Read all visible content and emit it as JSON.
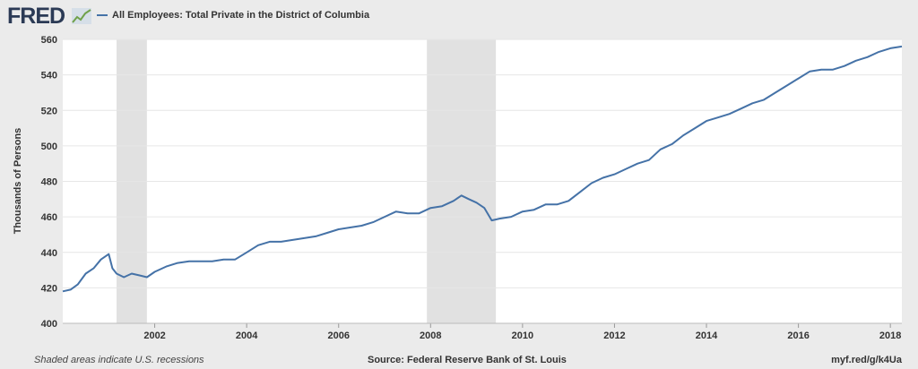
{
  "brand": {
    "logo_text": "FRED",
    "logo_icon": "fred-chart-icon"
  },
  "footer": {
    "note": "Shaded areas indicate U.S. recessions",
    "source": "Source: Federal Reserve Bank of St. Louis",
    "link": "myf.red/g/k4Ua"
  },
  "colors": {
    "series": "#4572a7",
    "recession": "#e1e1e1",
    "background": "#ebebeb",
    "plot": "#ffffff",
    "grid": "#e6e6e6"
  },
  "chart_data": {
    "type": "line",
    "title": "",
    "xlabel": "",
    "ylabel": "Thousands of Persons",
    "ylim": [
      400,
      560
    ],
    "xlim": [
      2000.0,
      2018.25
    ],
    "yticks": [
      400,
      420,
      440,
      460,
      480,
      500,
      520,
      540,
      560
    ],
    "xticks": [
      2002,
      2004,
      2006,
      2008,
      2010,
      2012,
      2014,
      2016,
      2018
    ],
    "grid": true,
    "legend": "top-left",
    "recessions": [
      [
        2001.17,
        2001.83
      ],
      [
        2007.92,
        2009.42
      ]
    ],
    "series": [
      {
        "name": "All Employees: Total Private in the District of Columbia",
        "color": "#4572a7",
        "x": [
          2000.0,
          2000.17,
          2000.33,
          2000.5,
          2000.67,
          2000.83,
          2001.0,
          2001.08,
          2001.17,
          2001.33,
          2001.5,
          2001.67,
          2001.83,
          2002.0,
          2002.25,
          2002.5,
          2002.75,
          2003.0,
          2003.25,
          2003.5,
          2003.75,
          2004.0,
          2004.25,
          2004.5,
          2004.75,
          2005.0,
          2005.25,
          2005.5,
          2005.75,
          2006.0,
          2006.25,
          2006.5,
          2006.75,
          2007.0,
          2007.25,
          2007.5,
          2007.75,
          2008.0,
          2008.25,
          2008.5,
          2008.67,
          2008.83,
          2009.0,
          2009.17,
          2009.33,
          2009.5,
          2009.75,
          2010.0,
          2010.25,
          2010.5,
          2010.75,
          2011.0,
          2011.25,
          2011.5,
          2011.75,
          2012.0,
          2012.25,
          2012.5,
          2012.75,
          2013.0,
          2013.25,
          2013.5,
          2013.75,
          2014.0,
          2014.25,
          2014.5,
          2014.75,
          2015.0,
          2015.25,
          2015.5,
          2015.75,
          2016.0,
          2016.25,
          2016.5,
          2016.75,
          2017.0,
          2017.25,
          2017.5,
          2017.75,
          2018.0,
          2018.25
        ],
        "values": [
          418,
          419,
          422,
          428,
          431,
          436,
          439,
          431,
          428,
          426,
          428,
          427,
          426,
          429,
          432,
          434,
          435,
          435,
          435,
          436,
          436,
          440,
          444,
          446,
          446,
          447,
          448,
          449,
          451,
          453,
          454,
          455,
          457,
          460,
          463,
          462,
          462,
          465,
          466,
          469,
          472,
          470,
          468,
          465,
          458,
          459,
          460,
          463,
          464,
          467,
          467,
          469,
          474,
          479,
          482,
          484,
          487,
          490,
          492,
          498,
          501,
          506,
          510,
          514,
          516,
          518,
          521,
          524,
          526,
          530,
          534,
          538,
          542,
          543,
          543,
          545,
          548,
          550,
          553,
          555,
          556
        ]
      }
    ]
  }
}
